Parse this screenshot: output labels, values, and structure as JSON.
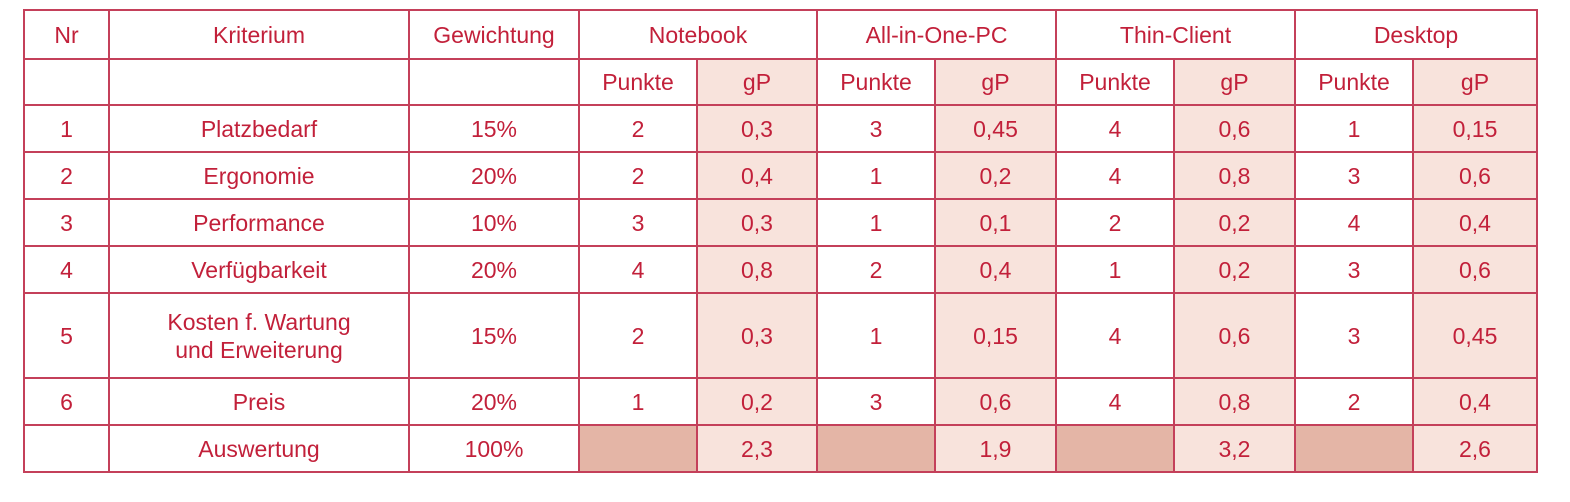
{
  "headers": {
    "nr": "Nr",
    "kriterium": "Kriterium",
    "gewichtung": "Gewichtung",
    "options": [
      "Notebook",
      "All-in-One-PC",
      "Thin-Client",
      "Desktop"
    ]
  },
  "subheaders": {
    "punkte": "Punkte",
    "gp": "gP"
  },
  "rows": [
    {
      "nr": "1",
      "kriterium": "Platzbedarf",
      "kriterium2": "",
      "gewichtung": "15%",
      "values": [
        [
          "2",
          "0,3"
        ],
        [
          "3",
          "0,45"
        ],
        [
          "4",
          "0,6"
        ],
        [
          "1",
          "0,15"
        ]
      ]
    },
    {
      "nr": "2",
      "kriterium": "Ergonomie",
      "kriterium2": "",
      "gewichtung": "20%",
      "values": [
        [
          "2",
          "0,4"
        ],
        [
          "1",
          "0,2"
        ],
        [
          "4",
          "0,8"
        ],
        [
          "3",
          "0,6"
        ]
      ]
    },
    {
      "nr": "3",
      "kriterium": "Performance",
      "kriterium2": "",
      "gewichtung": "10%",
      "values": [
        [
          "3",
          "0,3"
        ],
        [
          "1",
          "0,1"
        ],
        [
          "2",
          "0,2"
        ],
        [
          "4",
          "0,4"
        ]
      ]
    },
    {
      "nr": "4",
      "kriterium": "Verfügbarkeit",
      "kriterium2": "",
      "gewichtung": "20%",
      "values": [
        [
          "4",
          "0,8"
        ],
        [
          "2",
          "0,4"
        ],
        [
          "1",
          "0,2"
        ],
        [
          "3",
          "0,6"
        ]
      ]
    },
    {
      "nr": "5",
      "kriterium": "Kosten f. Wartung",
      "kriterium2": "und Erweiterung",
      "gewichtung": "15%",
      "values": [
        [
          "2",
          "0,3"
        ],
        [
          "1",
          "0,15"
        ],
        [
          "4",
          "0,6"
        ],
        [
          "3",
          "0,45"
        ]
      ]
    },
    {
      "nr": "6",
      "kriterium": "Preis",
      "kriterium2": "",
      "gewichtung": "20%",
      "values": [
        [
          "1",
          "0,2"
        ],
        [
          "3",
          "0,6"
        ],
        [
          "4",
          "0,8"
        ],
        [
          "2",
          "0,4"
        ]
      ]
    }
  ],
  "total": {
    "label": "Auswertung",
    "gewichtung": "100%",
    "values": [
      "2,3",
      "1,9",
      "3,2",
      "2,6"
    ]
  },
  "colors": {
    "text": "#c2203a",
    "border": "#c4405a",
    "shade": "#f8e3dc",
    "dark_shade": "#e4b5a6"
  }
}
